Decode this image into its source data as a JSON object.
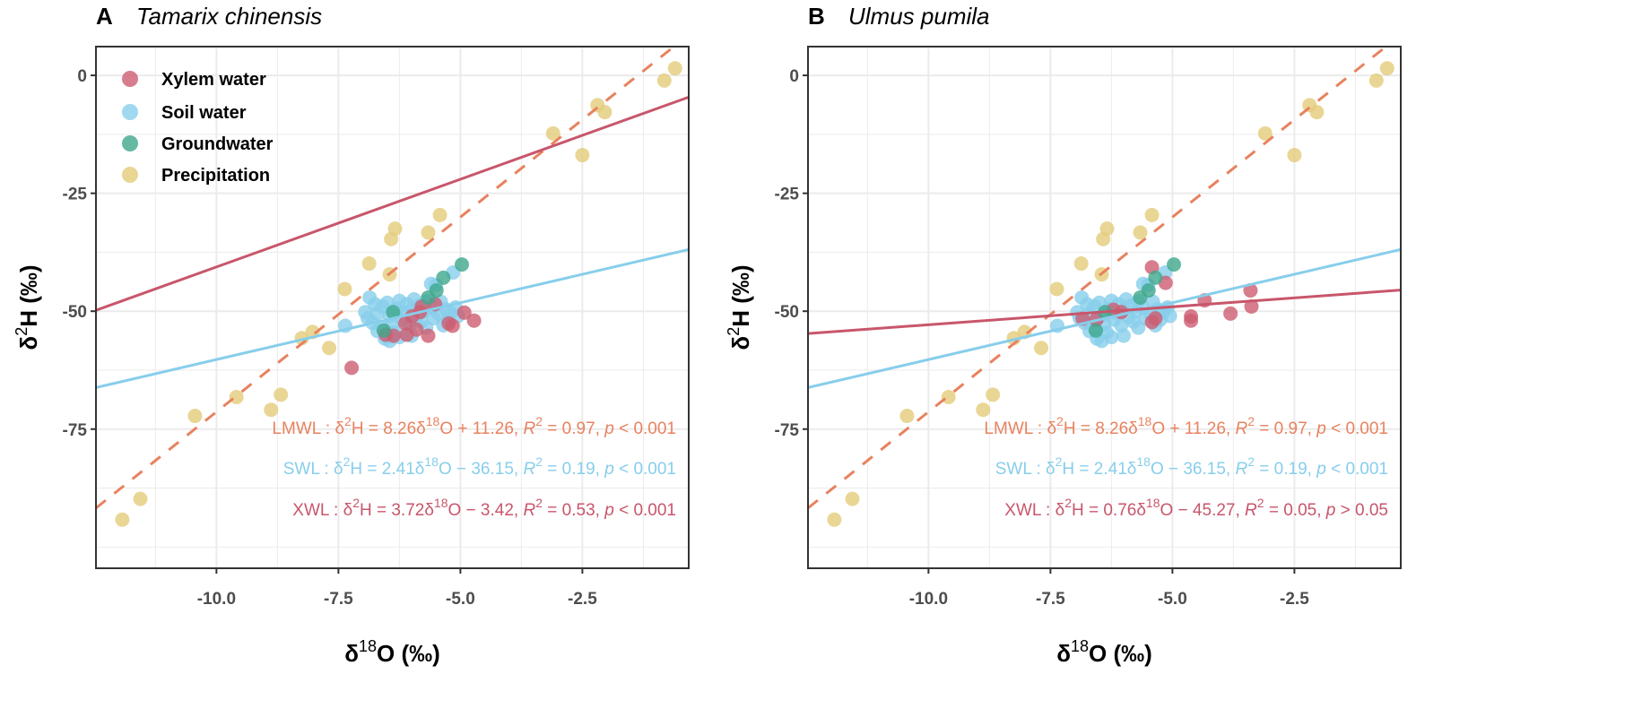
{
  "chart_data": [
    {
      "type": "scatter",
      "panel_letter": "A",
      "title": "Tamarix chinensis",
      "xlabel": {
        "pre": "δ",
        "sup": "18",
        "post": "O (‰)"
      },
      "ylabel": {
        "pre": "δ",
        "sup": "2",
        "post": "H (‰)"
      },
      "xlim": [
        -12.47,
        -0.32
      ],
      "ylim": [
        -104.5,
        6.1
      ],
      "xticks": [
        -10,
        -7.5,
        -5,
        -2.5
      ],
      "xtick_labels": [
        "-10.0",
        "-7.5",
        "-5.0",
        "-2.5"
      ],
      "yticks": [
        0,
        -25,
        -50,
        -75
      ],
      "ytick_labels": [
        "0",
        "-25",
        "-50",
        "-75"
      ],
      "grid": true,
      "legend": {
        "placement": "top-left",
        "entries": [
          "Xylem water",
          "Soil water",
          "Groundwater",
          "Precipitation"
        ]
      },
      "series": [
        {
          "name": "Soil water",
          "color": "#87CEEB",
          "points": [
            [
              -6.86,
              -47.1
            ],
            [
              -6.75,
              -48.5
            ],
            [
              -6.9,
              -51.5
            ],
            [
              -6.8,
              -52.5
            ],
            [
              -6.7,
              -50.5
            ],
            [
              -6.6,
              -49
            ],
            [
              -6.5,
              -48.2
            ],
            [
              -6.45,
              -51
            ],
            [
              -6.4,
              -52.8
            ],
            [
              -6.35,
              -54.5
            ],
            [
              -6.3,
              -49.5
            ],
            [
              -6.25,
              -47.8
            ],
            [
              -6.2,
              -51.8
            ],
            [
              -6.15,
              -50.3
            ],
            [
              -6.1,
              -48.5
            ],
            [
              -6.05,
              -53
            ],
            [
              -6.0,
              -49.8
            ],
            [
              -5.95,
              -47.5
            ],
            [
              -5.9,
              -51.2
            ],
            [
              -5.85,
              -48.8
            ],
            [
              -5.8,
              -52.2
            ],
            [
              -5.75,
              -50
            ],
            [
              -5.7,
              -47.9
            ],
            [
              -5.6,
              -49.3
            ],
            [
              -5.55,
              -51.5
            ],
            [
              -5.5,
              -44.5
            ],
            [
              -5.45,
              -50.5
            ],
            [
              -5.4,
              -48
            ],
            [
              -5.3,
              -49.6
            ],
            [
              -5.25,
              -51.8
            ],
            [
              -5.2,
              -50.4
            ],
            [
              -5.1,
              -49.2
            ],
            [
              -5.05,
              -51
            ],
            [
              -5.15,
              -41.8
            ],
            [
              -5.6,
              -44.2
            ],
            [
              -6.55,
              -55.8
            ],
            [
              -6.45,
              -56.3
            ],
            [
              -6.6,
              -53.6
            ],
            [
              -6.25,
              -55.5
            ],
            [
              -7.36,
              -53.1
            ],
            [
              -6.95,
              -50.2
            ],
            [
              -6.0,
              -55.2
            ],
            [
              -5.7,
              -53.5
            ],
            [
              -5.35,
              -53
            ],
            [
              -6.7,
              -54.2
            ]
          ]
        },
        {
          "name": "Xylem water",
          "color": "#CD5C70",
          "points": [
            [
              -7.23,
              -62.0
            ],
            [
              -5.66,
              -55.2
            ],
            [
              -5.24,
              -52.6
            ],
            [
              -5.16,
              -53.1
            ],
            [
              -4.92,
              -50.3
            ],
            [
              -4.72,
              -52.0
            ],
            [
              -5.52,
              -48.5
            ],
            [
              -5.79,
              -49.0
            ],
            [
              -5.99,
              -51.1
            ],
            [
              -6.13,
              -52.6
            ],
            [
              -6.1,
              -55.0
            ],
            [
              -6.37,
              -55.2
            ],
            [
              -5.9,
              -53.9
            ],
            [
              -6.53,
              -55.0
            ],
            [
              -5.83,
              -50.2
            ]
          ]
        },
        {
          "name": "Groundwater",
          "color": "#3FA78C",
          "points": [
            [
              -4.97,
              -40.1
            ],
            [
              -5.35,
              -42.9
            ],
            [
              -5.49,
              -45.6
            ],
            [
              -5.66,
              -47.1
            ],
            [
              -6.38,
              -50.2
            ],
            [
              -6.57,
              -54.1
            ]
          ]
        },
        {
          "name": "Precipitation",
          "color": "#E3CC7A",
          "points": [
            [
              -0.6,
              1.5
            ],
            [
              -0.82,
              -1.1
            ],
            [
              -2.19,
              -6.3
            ],
            [
              -2.04,
              -7.8
            ],
            [
              -3.1,
              -12.3
            ],
            [
              -2.5,
              -16.9
            ],
            [
              -5.42,
              -29.6
            ],
            [
              -6.34,
              -32.5
            ],
            [
              -6.42,
              -34.7
            ],
            [
              -5.66,
              -33.3
            ],
            [
              -6.87,
              -39.9
            ],
            [
              -6.45,
              -42.2
            ],
            [
              -7.37,
              -45.3
            ],
            [
              -8.25,
              -55.7
            ],
            [
              -8.03,
              -54.4
            ],
            [
              -7.69,
              -57.8
            ],
            [
              -9.59,
              -68.2
            ],
            [
              -8.68,
              -67.7
            ],
            [
              -8.88,
              -70.9
            ],
            [
              -10.44,
              -72.2
            ],
            [
              -11.56,
              -89.8
            ],
            [
              -11.93,
              -94.2
            ]
          ]
        }
      ],
      "fit_lines": [
        {
          "name": "LMWL",
          "slope": 8.26,
          "intercept": 11.26,
          "color": "#E8825F",
          "dashed": true,
          "segments": [
            {
              "t": "LMWL : δ"
            },
            {
              "sup": "2"
            },
            {
              "t": "H = 8.26δ"
            },
            {
              "sup": "18"
            },
            {
              "t": "O + 11.26,  "
            },
            {
              "i": "R"
            },
            {
              "sup": "2"
            },
            {
              "t": " = 0.97,  "
            },
            {
              "i": "p"
            },
            {
              "t": " < 0.001"
            }
          ]
        },
        {
          "name": "SWL",
          "slope": 2.41,
          "intercept": -36.15,
          "color": "#87CEEB",
          "dashed": false,
          "segments": [
            {
              "t": "SWL : δ"
            },
            {
              "sup": "2"
            },
            {
              "t": "H = 2.41δ"
            },
            {
              "sup": "18"
            },
            {
              "t": "O − 36.15,  "
            },
            {
              "i": "R"
            },
            {
              "sup": "2"
            },
            {
              "t": " = 0.19,  "
            },
            {
              "i": "p"
            },
            {
              "t": " < 0.001"
            }
          ]
        },
        {
          "name": "XWL",
          "slope": 3.72,
          "intercept": -3.42,
          "color": "#C8566B",
          "dashed": false,
          "segments": [
            {
              "t": "XWL : δ"
            },
            {
              "sup": "2"
            },
            {
              "t": "H = 3.72δ"
            },
            {
              "sup": "18"
            },
            {
              "t": "O − 3.42,  "
            },
            {
              "i": "R"
            },
            {
              "sup": "2"
            },
            {
              "t": " = 0.53,  "
            },
            {
              "i": "p"
            },
            {
              "t": " < 0.001"
            }
          ]
        }
      ]
    },
    {
      "type": "scatter",
      "panel_letter": "B",
      "title": "Ulmus pumila",
      "xlabel": {
        "pre": "δ",
        "sup": "18",
        "post": "O (‰)"
      },
      "ylabel": {
        "pre": "δ",
        "sup": "2",
        "post": "H (‰)"
      },
      "xlim": [
        -12.47,
        -0.32
      ],
      "ylim": [
        -104.5,
        6.1
      ],
      "xticks": [
        -10,
        -7.5,
        -5,
        -2.5
      ],
      "xtick_labels": [
        "-10.0",
        "-7.5",
        "-5.0",
        "-2.5"
      ],
      "yticks": [
        0,
        -25,
        -50,
        -75
      ],
      "ytick_labels": [
        "0",
        "-25",
        "-50",
        "-75"
      ],
      "grid": true,
      "legend": null,
      "series": [
        {
          "name": "Soil water",
          "color": "#87CEEB",
          "points": [
            [
              -6.86,
              -47.1
            ],
            [
              -6.75,
              -48.5
            ],
            [
              -6.9,
              -51.5
            ],
            [
              -6.8,
              -52.5
            ],
            [
              -6.7,
              -50.5
            ],
            [
              -6.6,
              -49
            ],
            [
              -6.5,
              -48.2
            ],
            [
              -6.45,
              -51
            ],
            [
              -6.4,
              -52.8
            ],
            [
              -6.35,
              -54.5
            ],
            [
              -6.3,
              -49.5
            ],
            [
              -6.25,
              -47.8
            ],
            [
              -6.2,
              -51.8
            ],
            [
              -6.15,
              -50.3
            ],
            [
              -6.1,
              -48.5
            ],
            [
              -6.05,
              -53
            ],
            [
              -6.0,
              -49.8
            ],
            [
              -5.95,
              -47.5
            ],
            [
              -5.9,
              -51.2
            ],
            [
              -5.85,
              -48.8
            ],
            [
              -5.8,
              -52.2
            ],
            [
              -5.75,
              -50
            ],
            [
              -5.7,
              -47.9
            ],
            [
              -5.6,
              -49.3
            ],
            [
              -5.55,
              -51.5
            ],
            [
              -5.5,
              -44.5
            ],
            [
              -5.45,
              -50.5
            ],
            [
              -5.4,
              -48
            ],
            [
              -5.3,
              -49.6
            ],
            [
              -5.25,
              -51.8
            ],
            [
              -5.2,
              -50.4
            ],
            [
              -5.1,
              -49.2
            ],
            [
              -5.05,
              -51
            ],
            [
              -5.15,
              -41.8
            ],
            [
              -5.6,
              -44.2
            ],
            [
              -6.55,
              -55.8
            ],
            [
              -6.45,
              -56.3
            ],
            [
              -6.6,
              -53.6
            ],
            [
              -6.25,
              -55.5
            ],
            [
              -7.36,
              -53.1
            ],
            [
              -6.95,
              -50.2
            ],
            [
              -6.0,
              -55.2
            ],
            [
              -5.7,
              -53.5
            ],
            [
              -5.35,
              -53
            ],
            [
              -6.7,
              -54.2
            ]
          ]
        },
        {
          "name": "Xylem water",
          "color": "#CD5C70",
          "points": [
            [
              -5.42,
              -40.7
            ],
            [
              -5.14,
              -44.0
            ],
            [
              -6.84,
              -51.6
            ],
            [
              -6.56,
              -51.8
            ],
            [
              -6.21,
              -49.7
            ],
            [
              -6.05,
              -50.2
            ],
            [
              -5.42,
              -52.3
            ],
            [
              -5.35,
              -51.5
            ],
            [
              -4.62,
              -51.1
            ],
            [
              -4.62,
              -52.0
            ],
            [
              -4.34,
              -47.7
            ],
            [
              -3.81,
              -50.5
            ],
            [
              -3.4,
              -45.6
            ],
            [
              -3.38,
              -49.0
            ]
          ]
        },
        {
          "name": "Groundwater",
          "color": "#3FA78C",
          "points": [
            [
              -4.97,
              -40.1
            ],
            [
              -5.35,
              -42.9
            ],
            [
              -5.49,
              -45.6
            ],
            [
              -5.66,
              -47.1
            ],
            [
              -6.38,
              -50.2
            ],
            [
              -6.57,
              -54.1
            ]
          ]
        },
        {
          "name": "Precipitation",
          "color": "#E3CC7A",
          "points": [
            [
              -0.6,
              1.5
            ],
            [
              -0.82,
              -1.1
            ],
            [
              -2.19,
              -6.3
            ],
            [
              -2.04,
              -7.8
            ],
            [
              -3.1,
              -12.3
            ],
            [
              -2.5,
              -16.9
            ],
            [
              -5.42,
              -29.6
            ],
            [
              -6.34,
              -32.5
            ],
            [
              -6.42,
              -34.7
            ],
            [
              -5.66,
              -33.3
            ],
            [
              -6.87,
              -39.9
            ],
            [
              -6.45,
              -42.2
            ],
            [
              -7.37,
              -45.3
            ],
            [
              -8.25,
              -55.7
            ],
            [
              -8.03,
              -54.4
            ],
            [
              -7.69,
              -57.8
            ],
            [
              -9.59,
              -68.2
            ],
            [
              -8.68,
              -67.7
            ],
            [
              -8.88,
              -70.9
            ],
            [
              -10.44,
              -72.2
            ],
            [
              -11.56,
              -89.8
            ],
            [
              -11.93,
              -94.2
            ]
          ]
        }
      ],
      "fit_lines": [
        {
          "name": "LMWL",
          "slope": 8.26,
          "intercept": 11.26,
          "color": "#E8825F",
          "dashed": true,
          "segments": [
            {
              "t": "LMWL : δ"
            },
            {
              "sup": "2"
            },
            {
              "t": "H = 8.26δ"
            },
            {
              "sup": "18"
            },
            {
              "t": "O + 11.26,  "
            },
            {
              "i": "R"
            },
            {
              "sup": "2"
            },
            {
              "t": " = 0.97,  "
            },
            {
              "i": "p"
            },
            {
              "t": " < 0.001"
            }
          ]
        },
        {
          "name": "SWL",
          "slope": 2.41,
          "intercept": -36.15,
          "color": "#87CEEB",
          "dashed": false,
          "segments": [
            {
              "t": "SWL : δ"
            },
            {
              "sup": "2"
            },
            {
              "t": "H = 2.41δ"
            },
            {
              "sup": "18"
            },
            {
              "t": "O − 36.15,  "
            },
            {
              "i": "R"
            },
            {
              "sup": "2"
            },
            {
              "t": " = 0.19,  "
            },
            {
              "i": "p"
            },
            {
              "t": " < 0.001"
            }
          ]
        },
        {
          "name": "XWL",
          "slope": 0.76,
          "intercept": -45.27,
          "color": "#C8566B",
          "dashed": false,
          "segments": [
            {
              "t": "XWL : δ"
            },
            {
              "sup": "2"
            },
            {
              "t": "H = 0.76δ"
            },
            {
              "sup": "18"
            },
            {
              "t": "O − 45.27,  "
            },
            {
              "i": "R"
            },
            {
              "sup": "2"
            },
            {
              "t": " = 0.05,  "
            },
            {
              "i": "p"
            },
            {
              "t": " > 0.05"
            }
          ]
        }
      ]
    }
  ]
}
